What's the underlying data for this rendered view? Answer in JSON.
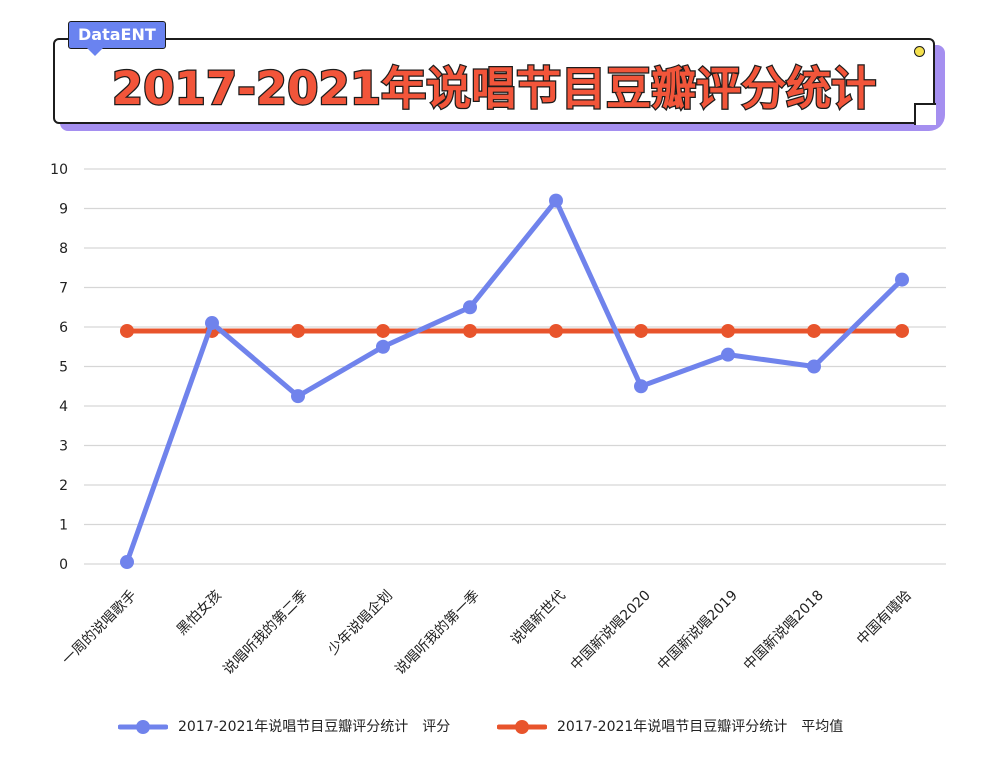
{
  "header": {
    "brand": "DataENT",
    "title": "2017-2021年说唱节目豆瓣评分统计"
  },
  "colors": {
    "score": "#7083ec",
    "average": "#e8542c",
    "grid": "#d6d6d6",
    "title": "#f2553a"
  },
  "chart_data": {
    "type": "line",
    "categories": [
      "一周的说唱歌手",
      "黑怕女孩",
      "说唱听我的第二季",
      "少年说唱企划",
      "说唱听我的第一季",
      "说唱新世代",
      "中国新说唱2020",
      "中国新说唱2019",
      "中国新说唱2018",
      "中国有嘻哈"
    ],
    "ylim": [
      0,
      10
    ],
    "yticks": [
      "0",
      "1",
      "2",
      "3",
      "4",
      "5",
      "6",
      "7",
      "8",
      "9",
      "10"
    ],
    "grid": true,
    "legend_position": "bottom",
    "series": [
      {
        "name": "2017-2021年说唱节目豆瓣评分统计　评分",
        "values": [
          0.05,
          6.1,
          4.25,
          5.5,
          6.5,
          9.2,
          4.5,
          5.3,
          5.0,
          7.2
        ]
      },
      {
        "name": "2017-2021年说唱节目豆瓣评分统计　平均值",
        "values": [
          5.9,
          5.9,
          5.9,
          5.9,
          5.9,
          5.9,
          5.9,
          5.9,
          5.9,
          5.9
        ]
      }
    ]
  }
}
